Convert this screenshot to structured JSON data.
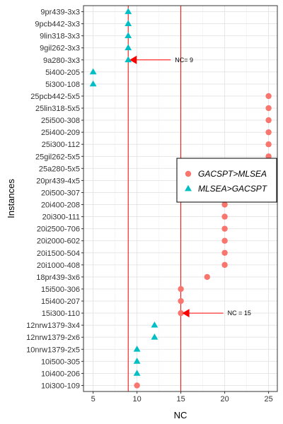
{
  "chart_data": {
    "type": "scatter",
    "xlabel": "NC",
    "ylabel": "Instances",
    "xlim": [
      3.9,
      26.0
    ],
    "x_ticks": [
      5,
      10,
      15,
      20,
      25
    ],
    "grid": true,
    "legend_position": "right",
    "categories": [
      "9pr439-3x3",
      "9pcb442-3x3",
      "9lin318-3x3",
      "9gil262-3x3",
      "9a280-3x3",
      "5i400-205",
      "5i300-108",
      "25pcb442-5x5",
      "25lin318-5x5",
      "25i500-308",
      "25i400-209",
      "25i300-112",
      "25gil262-5x5",
      "25a280-5x5",
      "20pr439-4x5",
      "20i500-307",
      "20i400-208",
      "20i300-111",
      "20i2500-706",
      "20i2000-602",
      "20i1500-504",
      "20i1000-408",
      "18pr439-3x6",
      "15i500-306",
      "15i400-207",
      "15i300-110",
      "12nrw1379-3x4",
      "12nrw1379-2x6",
      "10nrw1379-2x5",
      "10i500-305",
      "10i400-206",
      "10i300-109"
    ],
    "series": [
      {
        "name": "GACSPT>MLSEA",
        "color": "#F8766D",
        "shape": "circle",
        "points": [
          {
            "y": "25pcb442-5x5",
            "x": 25
          },
          {
            "y": "25lin318-5x5",
            "x": 25
          },
          {
            "y": "25i500-308",
            "x": 25
          },
          {
            "y": "25i400-209",
            "x": 25
          },
          {
            "y": "25i300-112",
            "x": 25
          },
          {
            "y": "25gil262-5x5",
            "x": 25
          },
          {
            "y": "25a280-5x5",
            "x": 25
          },
          {
            "y": "20pr439-4x5",
            "x": 20
          },
          {
            "y": "20i500-307",
            "x": 20
          },
          {
            "y": "20i400-208",
            "x": 20
          },
          {
            "y": "20i300-111",
            "x": 20
          },
          {
            "y": "20i2500-706",
            "x": 20
          },
          {
            "y": "20i2000-602",
            "x": 20
          },
          {
            "y": "20i1500-504",
            "x": 20
          },
          {
            "y": "20i1000-408",
            "x": 20
          },
          {
            "y": "18pr439-3x6",
            "x": 18
          },
          {
            "y": "15i500-306",
            "x": 15
          },
          {
            "y": "15i400-207",
            "x": 15
          },
          {
            "y": "15i300-110",
            "x": 15
          },
          {
            "y": "10i300-109",
            "x": 10
          }
        ]
      },
      {
        "name": "MLSEA>GACSPT",
        "color": "#00BFC4",
        "shape": "triangle",
        "points": [
          {
            "y": "9pr439-3x3",
            "x": 9
          },
          {
            "y": "9pcb442-3x3",
            "x": 9
          },
          {
            "y": "9lin318-3x3",
            "x": 9
          },
          {
            "y": "9gil262-3x3",
            "x": 9
          },
          {
            "y": "9a280-3x3",
            "x": 9
          },
          {
            "y": "5i400-205",
            "x": 5
          },
          {
            "y": "5i300-108",
            "x": 5
          },
          {
            "y": "12nrw1379-3x4",
            "x": 12
          },
          {
            "y": "12nrw1379-2x6",
            "x": 12
          },
          {
            "y": "10nrw1379-2x5",
            "x": 10
          },
          {
            "y": "10i500-305",
            "x": 10
          },
          {
            "y": "10i400-206",
            "x": 10
          }
        ]
      }
    ],
    "reference_lines": [
      {
        "x": 9,
        "color": "#FF0000",
        "label": "NC= 9",
        "arrow_at": "9a280-3x3"
      },
      {
        "x": 15,
        "color": "#FF0000",
        "label": "NC = 15",
        "arrow_at": "15i300-110"
      }
    ]
  }
}
